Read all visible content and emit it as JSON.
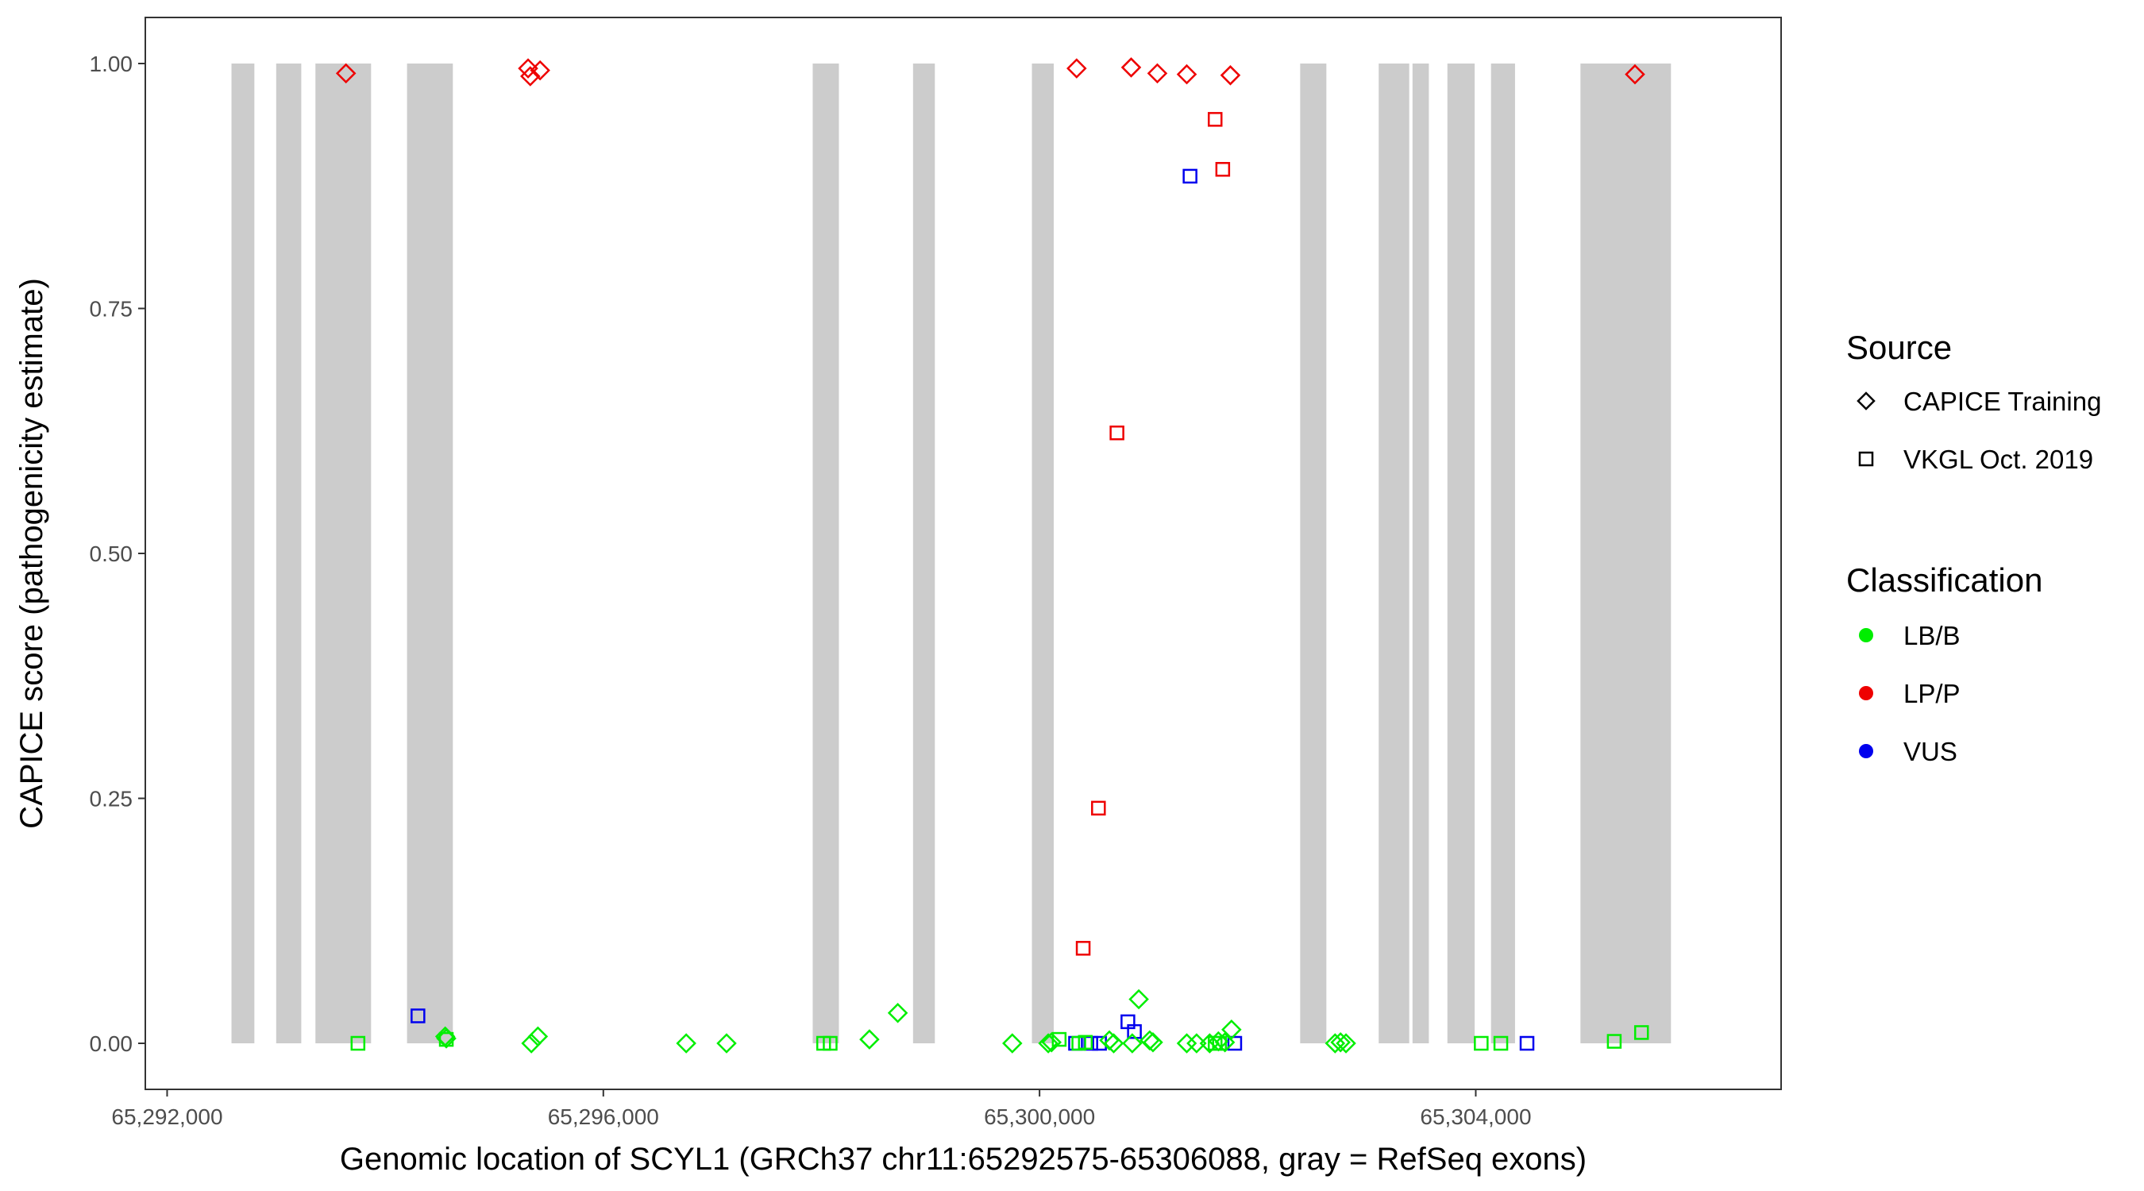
{
  "chart_data": {
    "type": "scatter",
    "xlabel": "Genomic location of SCYL1 (GRCh37 chr11:65292575-65306088, gray = RefSeq exons)",
    "ylabel": "CAPICE score (pathogenicity estimate)",
    "xlim": [
      65291800,
      65306800
    ],
    "ylim": [
      -0.047,
      1.047
    ],
    "x_ticks": [
      65292000,
      65296000,
      65300000,
      65304000
    ],
    "x_tick_labels": [
      "65,292,000",
      "65,296,000",
      "65,300,000",
      "65,304,000"
    ],
    "y_ticks": [
      0,
      0.25,
      0.5,
      0.75,
      1.0
    ],
    "y_tick_labels": [
      "0.00",
      "0.25",
      "0.50",
      "0.75",
      "1.00"
    ],
    "grid": false,
    "exon_color": "#cccccc",
    "exons": [
      [
        65292590,
        65292800
      ],
      [
        65293000,
        65293230
      ],
      [
        65293360,
        65293870
      ],
      [
        65294200,
        65294620
      ],
      [
        65297920,
        65298160
      ],
      [
        65298840,
        65299040
      ],
      [
        65299930,
        65300130
      ],
      [
        65302390,
        65302630
      ],
      [
        65303110,
        65303390
      ],
      [
        65303420,
        65303570
      ],
      [
        65303740,
        65303990
      ],
      [
        65304140,
        65304360
      ],
      [
        65304960,
        65305790
      ]
    ],
    "legend": {
      "position": "right",
      "source_title": "Source",
      "source_items": [
        {
          "label": "CAPICE Training",
          "shape": "diamond"
        },
        {
          "label": "VKGL Oct. 2019",
          "shape": "square"
        }
      ],
      "class_title": "Classification",
      "class_items": [
        {
          "label": "LB/B",
          "color": "#00ee00"
        },
        {
          "label": "LP/P",
          "color": "#ee0000"
        },
        {
          "label": "VUS",
          "color": "#0000ee"
        }
      ]
    },
    "series": [
      {
        "source": "CAPICE Training",
        "classification": "LP/P",
        "shape": "diamond",
        "color": "#ee0000",
        "points": [
          [
            65293640,
            0.99
          ],
          [
            65295310,
            0.995
          ],
          [
            65295330,
            0.987
          ],
          [
            65295420,
            0.993
          ],
          [
            65300340,
            0.995
          ],
          [
            65300840,
            0.996
          ],
          [
            65301080,
            0.99
          ],
          [
            65301350,
            0.989
          ],
          [
            65301750,
            0.988
          ],
          [
            65305460,
            0.989
          ]
        ]
      },
      {
        "source": "VKGL Oct. 2019",
        "classification": "LP/P",
        "shape": "square",
        "color": "#ee0000",
        "points": [
          [
            65301610,
            0.943
          ],
          [
            65301680,
            0.892
          ],
          [
            65300710,
            0.623
          ],
          [
            65300540,
            0.24
          ],
          [
            65300400,
            0.097
          ]
        ]
      },
      {
        "source": "VKGL Oct. 2019",
        "classification": "VUS",
        "shape": "square",
        "color": "#0000ee",
        "points": [
          [
            65301380,
            0.885
          ],
          [
            65294300,
            0.028
          ],
          [
            65300810,
            0.022
          ],
          [
            65300870,
            0.012
          ],
          [
            65300330,
            0.0
          ],
          [
            65300470,
            0.0
          ],
          [
            65300550,
            0.0
          ],
          [
            65301790,
            0.0
          ],
          [
            65304470,
            0.0
          ]
        ]
      },
      {
        "source": "CAPICE Training",
        "classification": "LB/B",
        "shape": "diamond",
        "color": "#00ee00",
        "points": [
          [
            65294550,
            0.007
          ],
          [
            65294560,
            0.005
          ],
          [
            65295340,
            0.0
          ],
          [
            65295400,
            0.007
          ],
          [
            65296760,
            0.0
          ],
          [
            65297130,
            0.0
          ],
          [
            65298440,
            0.004
          ],
          [
            65298700,
            0.031
          ],
          [
            65299750,
            0.0
          ],
          [
            65300080,
            0.0
          ],
          [
            65300110,
            0.001
          ],
          [
            65300640,
            0.003
          ],
          [
            65300680,
            0.0
          ],
          [
            65300850,
            0.0
          ],
          [
            65300910,
            0.045
          ],
          [
            65301010,
            0.003
          ],
          [
            65301040,
            0.001
          ],
          [
            65301350,
            0.0
          ],
          [
            65301440,
            0.0
          ],
          [
            65301560,
            0.0
          ],
          [
            65301640,
            0.002
          ],
          [
            65301700,
            0.001
          ],
          [
            65301760,
            0.014
          ],
          [
            65302710,
            0.0
          ],
          [
            65302760,
            0.001
          ],
          [
            65302810,
            0.0
          ]
        ]
      },
      {
        "source": "VKGL Oct. 2019",
        "classification": "LB/B",
        "shape": "square",
        "color": "#00ee00",
        "points": [
          [
            65293750,
            0.0
          ],
          [
            65294560,
            0.004
          ],
          [
            65298020,
            0.0
          ],
          [
            65298080,
            0.0
          ],
          [
            65300180,
            0.004
          ],
          [
            65300360,
            0.0
          ],
          [
            65300420,
            0.001
          ],
          [
            65301610,
            0.0
          ],
          [
            65301650,
            0.0
          ],
          [
            65304050,
            0.0
          ],
          [
            65304230,
            0.0
          ],
          [
            65305270,
            0.002
          ],
          [
            65305520,
            0.011
          ]
        ]
      }
    ]
  }
}
